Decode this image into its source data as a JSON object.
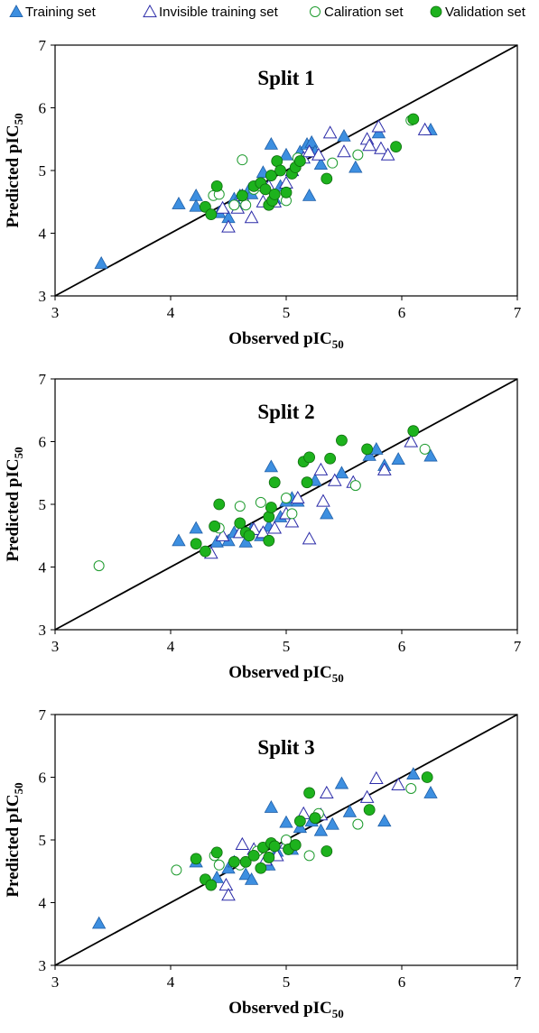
{
  "legend": [
    {
      "label": "Training set",
      "marker": "triangle-filled"
    },
    {
      "label": "Invisible training set",
      "marker": "triangle-open"
    },
    {
      "label": "Caliration set",
      "marker": "circle-open"
    },
    {
      "label": "Validation set",
      "marker": "circle-filled"
    }
  ],
  "colors": {
    "training_fill": "#3d8fe0",
    "training_edge": "#1f5fa8",
    "invisible_edge": "#2b2ba8",
    "calibration_edge": "#1e9b2e",
    "validation_fill": "#1db21d",
    "validation_edge": "#0d6b0d",
    "identity_line": "#000000"
  },
  "chart_data": [
    {
      "type": "scatter",
      "title": "Split 1",
      "xlabel": "Observed pIC",
      "xlabel_sub": "50",
      "ylabel": "Predicted pIC",
      "ylabel_sub": "50",
      "xlim": [
        3,
        7
      ],
      "ylim": [
        3,
        7
      ],
      "xticks": [
        "3",
        "4",
        "5",
        "6",
        "7"
      ],
      "yticks": [
        "3",
        "4",
        "5",
        "6",
        "7"
      ],
      "grid": false,
      "reference_line": "y = x",
      "series": [
        {
          "name": "Training set",
          "points": [
            [
              3.4,
              3.52
            ],
            [
              4.07,
              4.47
            ],
            [
              4.22,
              4.6
            ],
            [
              4.22,
              4.43
            ],
            [
              4.42,
              4.33
            ],
            [
              4.5,
              4.25
            ],
            [
              4.55,
              4.55
            ],
            [
              4.6,
              4.6
            ],
            [
              4.68,
              4.7
            ],
            [
              4.7,
              4.63
            ],
            [
              4.8,
              4.97
            ],
            [
              4.87,
              5.42
            ],
            [
              4.9,
              4.55
            ],
            [
              4.95,
              4.75
            ],
            [
              5.0,
              5.25
            ],
            [
              5.05,
              5.0
            ],
            [
              5.12,
              5.3
            ],
            [
              5.18,
              5.42
            ],
            [
              5.2,
              4.6
            ],
            [
              5.22,
              5.45
            ],
            [
              5.25,
              5.3
            ],
            [
              5.3,
              5.1
            ],
            [
              5.5,
              5.55
            ],
            [
              5.6,
              5.05
            ],
            [
              5.8,
              5.6
            ],
            [
              6.25,
              5.65
            ]
          ]
        },
        {
          "name": "Invisible training set",
          "points": [
            [
              4.45,
              4.4
            ],
            [
              4.5,
              4.1
            ],
            [
              4.58,
              4.4
            ],
            [
              4.62,
              4.6
            ],
            [
              4.7,
              4.25
            ],
            [
              4.8,
              4.5
            ],
            [
              4.85,
              4.75
            ],
            [
              4.9,
              4.5
            ],
            [
              5.0,
              4.8
            ],
            [
              5.05,
              5.0
            ],
            [
              5.15,
              5.2
            ],
            [
              5.2,
              5.3
            ],
            [
              5.28,
              5.25
            ],
            [
              5.38,
              5.6
            ],
            [
              5.5,
              5.3
            ],
            [
              5.7,
              5.5
            ],
            [
              5.72,
              5.4
            ],
            [
              5.8,
              5.7
            ],
            [
              5.82,
              5.35
            ],
            [
              5.88,
              5.25
            ],
            [
              6.2,
              5.65
            ]
          ]
        },
        {
          "name": "Caliration set",
          "points": [
            [
              4.37,
              4.6
            ],
            [
              4.42,
              4.62
            ],
            [
              4.55,
              4.45
            ],
            [
              4.62,
              5.17
            ],
            [
              4.65,
              4.45
            ],
            [
              4.72,
              4.7
            ],
            [
              4.78,
              4.75
            ],
            [
              5.0,
              4.52
            ],
            [
              5.1,
              5.2
            ],
            [
              5.4,
              5.12
            ],
            [
              5.62,
              5.25
            ],
            [
              6.08,
              5.8
            ]
          ]
        },
        {
          "name": "Validation set",
          "points": [
            [
              4.3,
              4.42
            ],
            [
              4.35,
              4.3
            ],
            [
              4.4,
              4.75
            ],
            [
              4.62,
              4.6
            ],
            [
              4.72,
              4.75
            ],
            [
              4.78,
              4.8
            ],
            [
              4.82,
              4.7
            ],
            [
              4.85,
              4.45
            ],
            [
              4.87,
              4.92
            ],
            [
              4.88,
              4.52
            ],
            [
              4.9,
              4.62
            ],
            [
              4.92,
              5.15
            ],
            [
              4.95,
              5.0
            ],
            [
              5.0,
              4.65
            ],
            [
              5.05,
              4.95
            ],
            [
              5.08,
              5.05
            ],
            [
              5.12,
              5.15
            ],
            [
              5.35,
              4.87
            ],
            [
              5.95,
              5.38
            ],
            [
              6.1,
              5.82
            ]
          ]
        }
      ]
    },
    {
      "type": "scatter",
      "title": "Split 2",
      "xlabel": "Observed pIC",
      "xlabel_sub": "50",
      "ylabel": "Predicted pIC",
      "ylabel_sub": "50",
      "xlim": [
        3,
        7
      ],
      "ylim": [
        3,
        7
      ],
      "xticks": [
        "3",
        "4",
        "5",
        "6",
        "7"
      ],
      "yticks": [
        "3",
        "4",
        "5",
        "6",
        "7"
      ],
      "grid": false,
      "reference_line": "y = x",
      "series": [
        {
          "name": "Training set",
          "points": [
            [
              4.07,
              4.42
            ],
            [
              4.22,
              4.62
            ],
            [
              4.4,
              4.4
            ],
            [
              4.5,
              4.42
            ],
            [
              4.55,
              4.55
            ],
            [
              4.65,
              4.4
            ],
            [
              4.7,
              4.6
            ],
            [
              4.78,
              4.5
            ],
            [
              4.85,
              4.65
            ],
            [
              4.87,
              5.6
            ],
            [
              4.95,
              4.8
            ],
            [
              5.0,
              5.05
            ],
            [
              5.05,
              5.1
            ],
            [
              5.1,
              5.05
            ],
            [
              5.25,
              5.38
            ],
            [
              5.35,
              4.85
            ],
            [
              5.48,
              5.5
            ],
            [
              5.72,
              5.78
            ],
            [
              5.78,
              5.88
            ],
            [
              5.85,
              5.62
            ],
            [
              5.97,
              5.72
            ],
            [
              6.25,
              5.77
            ]
          ]
        },
        {
          "name": "Invisible training set",
          "points": [
            [
              4.35,
              4.22
            ],
            [
              4.45,
              4.5
            ],
            [
              4.6,
              4.55
            ],
            [
              4.72,
              4.6
            ],
            [
              4.8,
              4.55
            ],
            [
              4.9,
              4.62
            ],
            [
              5.0,
              4.85
            ],
            [
              5.05,
              4.72
            ],
            [
              5.1,
              5.1
            ],
            [
              5.2,
              4.45
            ],
            [
              5.3,
              5.55
            ],
            [
              5.32,
              5.05
            ],
            [
              5.42,
              5.38
            ],
            [
              5.58,
              5.35
            ],
            [
              5.85,
              5.55
            ],
            [
              6.08,
              6.0
            ]
          ]
        },
        {
          "name": "Caliration set",
          "points": [
            [
              3.38,
              4.02
            ],
            [
              4.42,
              4.62
            ],
            [
              4.6,
              4.97
            ],
            [
              4.78,
              5.03
            ],
            [
              5.0,
              5.1
            ],
            [
              5.05,
              4.85
            ],
            [
              5.6,
              5.3
            ],
            [
              6.2,
              5.88
            ]
          ]
        },
        {
          "name": "Validation set",
          "points": [
            [
              4.22,
              4.37
            ],
            [
              4.3,
              4.25
            ],
            [
              4.38,
              4.65
            ],
            [
              4.42,
              5.0
            ],
            [
              4.6,
              4.7
            ],
            [
              4.65,
              4.55
            ],
            [
              4.68,
              4.5
            ],
            [
              4.85,
              4.42
            ],
            [
              4.85,
              4.8
            ],
            [
              4.87,
              4.95
            ],
            [
              4.9,
              5.35
            ],
            [
              5.15,
              5.68
            ],
            [
              5.18,
              5.35
            ],
            [
              5.2,
              5.75
            ],
            [
              5.38,
              5.73
            ],
            [
              5.48,
              6.02
            ],
            [
              5.7,
              5.88
            ],
            [
              6.1,
              6.17
            ]
          ]
        }
      ]
    },
    {
      "type": "scatter",
      "title": "Split 3",
      "xlabel": "Observed pIC",
      "xlabel_sub": "50",
      "ylabel": "Predicted pIC",
      "ylabel_sub": "50",
      "xlim": [
        3,
        7
      ],
      "ylim": [
        3,
        7
      ],
      "xticks": [
        "3",
        "4",
        "5",
        "6",
        "7"
      ],
      "yticks": [
        "3",
        "4",
        "5",
        "6",
        "7"
      ],
      "grid": false,
      "reference_line": "y = x",
      "series": [
        {
          "name": "Training set",
          "points": [
            [
              3.38,
              3.67
            ],
            [
              4.22,
              4.65
            ],
            [
              4.4,
              4.4
            ],
            [
              4.5,
              4.55
            ],
            [
              4.55,
              4.65
            ],
            [
              4.65,
              4.45
            ],
            [
              4.7,
              4.37
            ],
            [
              4.8,
              4.6
            ],
            [
              4.85,
              4.6
            ],
            [
              4.87,
              5.52
            ],
            [
              4.92,
              4.82
            ],
            [
              5.0,
              5.28
            ],
            [
              5.05,
              4.85
            ],
            [
              5.12,
              5.2
            ],
            [
              5.22,
              5.3
            ],
            [
              5.3,
              5.15
            ],
            [
              5.4,
              5.25
            ],
            [
              5.48,
              5.9
            ],
            [
              5.55,
              5.45
            ],
            [
              5.85,
              5.3
            ],
            [
              6.1,
              6.05
            ],
            [
              6.25,
              5.75
            ]
          ]
        },
        {
          "name": "Invisible training set",
          "points": [
            [
              4.48,
              4.28
            ],
            [
              4.5,
              4.12
            ],
            [
              4.62,
              4.93
            ],
            [
              4.72,
              4.85
            ],
            [
              4.82,
              4.68
            ],
            [
              4.92,
              4.75
            ],
            [
              5.0,
              4.95
            ],
            [
              5.15,
              5.42
            ],
            [
              5.3,
              5.4
            ],
            [
              5.35,
              5.75
            ],
            [
              5.7,
              5.68
            ],
            [
              5.78,
              5.98
            ],
            [
              5.97,
              5.88
            ]
          ]
        },
        {
          "name": "Caliration set",
          "points": [
            [
              4.05,
              4.52
            ],
            [
              4.38,
              4.75
            ],
            [
              4.42,
              4.6
            ],
            [
              4.6,
              4.6
            ],
            [
              4.75,
              4.82
            ],
            [
              5.0,
              5.0
            ],
            [
              5.28,
              5.42
            ],
            [
              5.2,
              4.75
            ],
            [
              5.62,
              5.25
            ],
            [
              6.08,
              5.82
            ]
          ]
        },
        {
          "name": "Validation set",
          "points": [
            [
              4.22,
              4.7
            ],
            [
              4.3,
              4.37
            ],
            [
              4.35,
              4.28
            ],
            [
              4.4,
              4.8
            ],
            [
              4.55,
              4.65
            ],
            [
              4.65,
              4.65
            ],
            [
              4.72,
              4.75
            ],
            [
              4.78,
              4.55
            ],
            [
              4.8,
              4.88
            ],
            [
              4.85,
              4.72
            ],
            [
              4.87,
              4.95
            ],
            [
              4.9,
              4.9
            ],
            [
              5.02,
              4.85
            ],
            [
              5.08,
              4.92
            ],
            [
              5.12,
              5.3
            ],
            [
              5.2,
              5.75
            ],
            [
              5.25,
              5.35
            ],
            [
              5.35,
              4.82
            ],
            [
              5.72,
              5.48
            ],
            [
              6.22,
              6.0
            ]
          ]
        }
      ]
    }
  ]
}
